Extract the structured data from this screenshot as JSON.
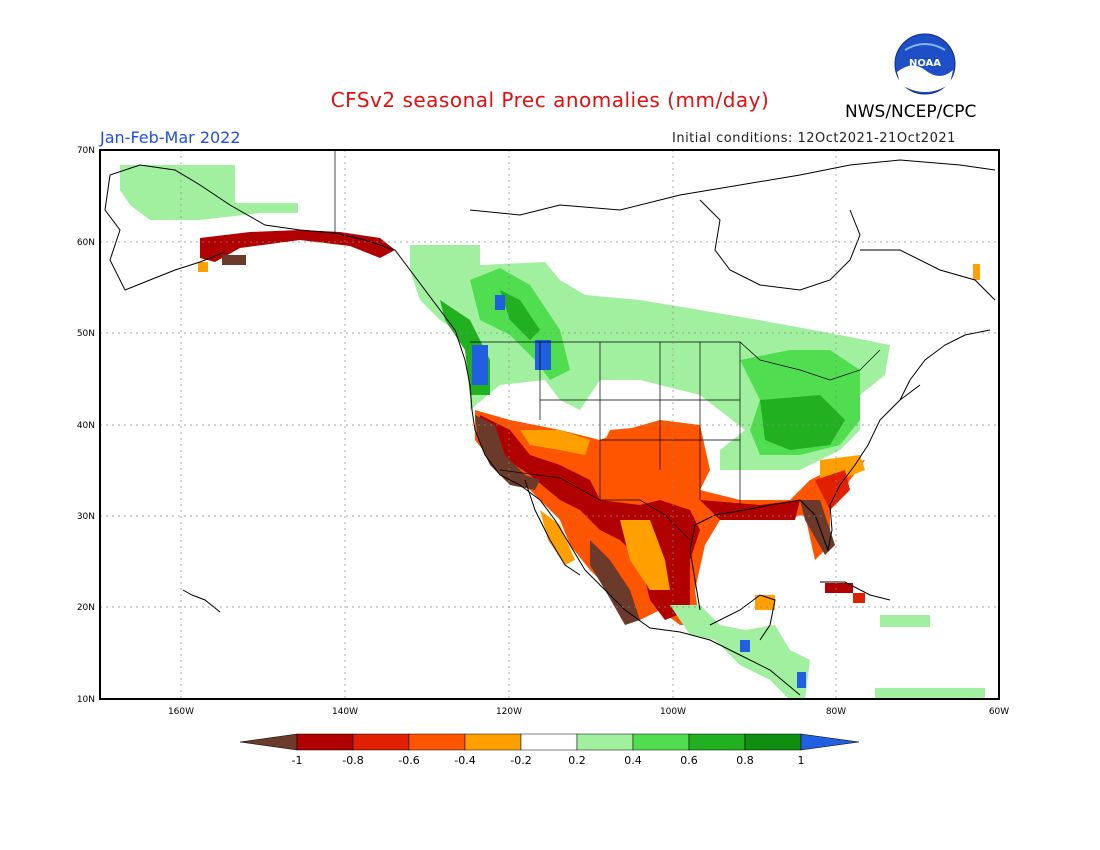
{
  "title": "CFSv2 seasonal Prec anomalies (mm/day)",
  "agency": "NWS/NCEP/CPC",
  "logo_text": "NOAA",
  "season": "Jan-Feb-Mar 2022",
  "initial_conditions": "Initial conditions: 12Oct2021-21Oct2021",
  "map": {
    "lon_range": [
      -172,
      -60
    ],
    "lat_range": [
      10,
      70
    ],
    "lat_labels": [
      "70N",
      "60N",
      "50N",
      "40N",
      "30N",
      "20N",
      "10N"
    ],
    "lon_labels": [
      "160W",
      "140W",
      "120W",
      "100W",
      "80W",
      "60W"
    ]
  },
  "colorbar": {
    "ticks": [
      "-1",
      "-0.8",
      "-0.6",
      "-0.4",
      "-0.2",
      "0.2",
      "0.4",
      "0.6",
      "0.8",
      "1"
    ],
    "colors": [
      "#6b3a2a",
      "#b00000",
      "#e02000",
      "#ff5500",
      "#ffa000",
      "#ffffff",
      "#a0f0a0",
      "#50dd50",
      "#20b020",
      "#108e10",
      "#2060e0"
    ]
  }
}
